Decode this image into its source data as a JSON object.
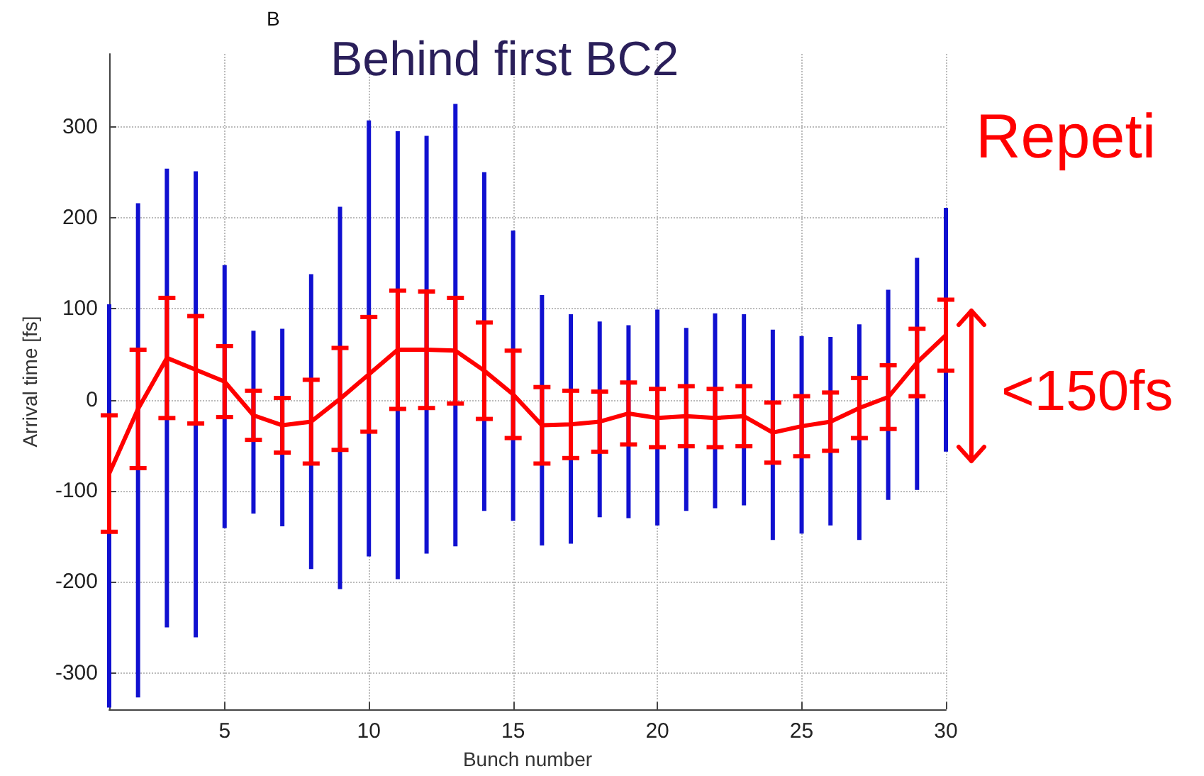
{
  "chart_data": {
    "type": "line",
    "title": "Behind first BC2",
    "xlabel": "Bunch number",
    "ylabel": "Arrival time [fs]",
    "annotations": [
      "B",
      "Repeti",
      "<150fs"
    ],
    "xlim": [
      1,
      30
    ],
    "xticks": [
      5,
      10,
      15,
      20,
      25,
      30
    ],
    "ylim": [
      -340,
      380
    ],
    "yticks": [
      -300,
      -200,
      -100,
      0,
      100,
      200,
      300
    ],
    "grid": true,
    "marker": "none",
    "line_style": "solid",
    "series": [
      {
        "type": "bar",
        "color": "#1010d0",
        "x": [
          1,
          2,
          3,
          4,
          5,
          6,
          7,
          8,
          9,
          10,
          11,
          12,
          13,
          14,
          15,
          16,
          17,
          18,
          19,
          20,
          21,
          22,
          23,
          24,
          25,
          26,
          27,
          28,
          29,
          30
        ],
        "base": [
          -338,
          -327,
          -250,
          -261,
          -141,
          -125,
          -139,
          -186,
          -208,
          -172,
          -197,
          -169,
          -161,
          -122,
          -133,
          -160,
          -158,
          -129,
          -130,
          -138,
          -122,
          -119,
          -116,
          -154,
          -147,
          -138,
          -154,
          -110,
          -99,
          -57
        ],
        "values": [
          443,
          543,
          504,
          512,
          289,
          201,
          217,
          324,
          420,
          479,
          492,
          459,
          486,
          372,
          319,
          275,
          252,
          215,
          212,
          237,
          201,
          214,
          210,
          231,
          217,
          207,
          237,
          231,
          255,
          268
        ]
      },
      {
        "color": "#ff0000",
        "x": [
          1,
          2,
          3,
          4,
          5,
          6,
          7,
          8,
          9,
          10,
          11,
          12,
          13,
          14,
          15,
          16,
          17,
          18,
          19,
          20,
          21,
          22,
          23,
          24,
          25,
          26,
          27,
          28,
          29,
          30
        ],
        "values": [
          -81,
          -10,
          46,
          33,
          20,
          -17,
          -28,
          -24,
          1,
          28,
          55,
          55,
          54,
          32,
          6,
          -28,
          -27,
          -24,
          -15,
          -20,
          -18,
          -20,
          -18,
          -36,
          -29,
          -24,
          -9,
          3,
          41,
          71
        ],
        "errors": [
          64,
          65,
          66,
          59,
          39,
          27,
          30,
          46,
          56,
          63,
          65,
          64,
          58,
          53,
          48,
          42,
          37,
          33,
          34,
          32,
          33,
          32,
          33,
          33,
          33,
          32,
          33,
          35,
          37,
          39
        ]
      }
    ]
  }
}
